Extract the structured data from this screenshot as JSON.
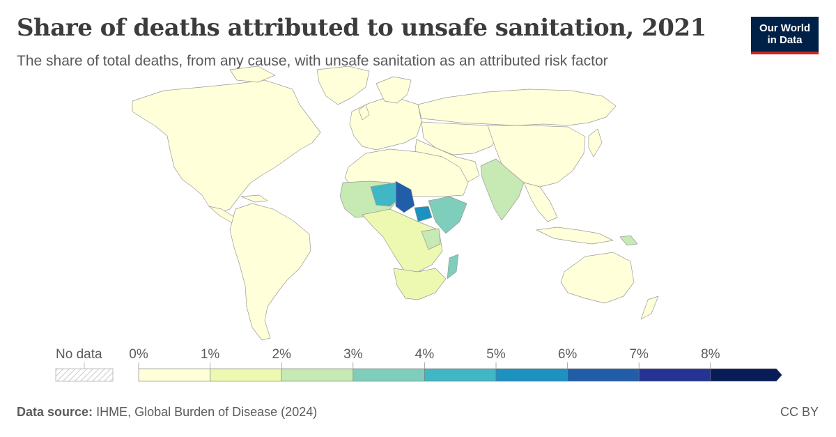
{
  "header": {
    "title": "Share of deaths attributed to unsafe sanitation, 2021",
    "subtitle": "The share of total deaths, from any cause, with unsafe sanitation as an attributed risk factor"
  },
  "logo": {
    "line1": "Our World",
    "line2": "in Data"
  },
  "legend": {
    "no_data_label": "No data",
    "ticks": [
      "0%",
      "1%",
      "2%",
      "3%",
      "4%",
      "5%",
      "6%",
      "7%",
      "8%"
    ],
    "bins": [
      {
        "from": 0,
        "to": 1,
        "color": "#ffffd9"
      },
      {
        "from": 1,
        "to": 2,
        "color": "#edf8b1"
      },
      {
        "from": 2,
        "to": 3,
        "color": "#c7e9b4"
      },
      {
        "from": 3,
        "to": 4,
        "color": "#7fcdbb"
      },
      {
        "from": 4,
        "to": 5,
        "color": "#41b6c4"
      },
      {
        "from": 5,
        "to": 6,
        "color": "#1d91c0"
      },
      {
        "from": 6,
        "to": 7,
        "color": "#225ea8"
      },
      {
        "from": 7,
        "to": 8,
        "color": "#253494"
      },
      {
        "from": 8,
        "to": null,
        "color": "#081d58"
      }
    ]
  },
  "footer": {
    "source_label": "Data source:",
    "source_text": "IHME, Global Burden of Disease (2024)",
    "license": "CC BY"
  },
  "colors": {
    "no_data": "#e0e0e0",
    "border": "#9a9a9a",
    "brand": "#002147",
    "brand_accent": "#ce261e"
  }
}
